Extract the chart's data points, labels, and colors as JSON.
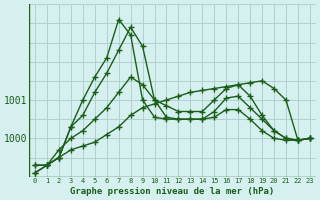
{
  "title": "Graphe pression niveau de la mer (hPa)",
  "background_color": "#d6f0f0",
  "grid_color": "#b0d0d0",
  "line_color": "#1a5e1a",
  "x_ticks": [
    0,
    1,
    2,
    3,
    4,
    5,
    6,
    7,
    8,
    9,
    10,
    11,
    12,
    13,
    14,
    15,
    16,
    17,
    18,
    19,
    20,
    21,
    22,
    23
  ],
  "ylim": [
    999.0,
    1003.5
  ],
  "yticks": [
    1000,
    1001
  ],
  "series": [
    [
      999.3,
      999.3,
      999.5,
      999.7,
      999.8,
      999.9,
      1000.1,
      1000.3,
      1000.6,
      1000.8,
      1000.9,
      1001.0,
      1001.1,
      1001.2,
      1001.25,
      1001.3,
      1001.35,
      1001.4,
      1001.45,
      1001.5,
      1001.3,
      1001.0,
      999.95,
      1000.0
    ],
    [
      999.3,
      999.3,
      999.7,
      1000.0,
      1000.2,
      1000.5,
      1000.8,
      1001.2,
      1001.6,
      1001.4,
      1001.0,
      1000.85,
      1000.7,
      1000.7,
      1000.7,
      1001.0,
      1001.3,
      1001.4,
      1001.1,
      1000.6,
      1000.2,
      1000.0,
      999.95,
      1000.0
    ],
    [
      999.1,
      999.3,
      999.5,
      1000.3,
      1000.6,
      1001.2,
      1001.7,
      1002.3,
      1002.9,
      1002.4,
      1001.0,
      1000.55,
      1000.5,
      1000.5,
      1000.5,
      1000.7,
      1001.05,
      1001.1,
      1000.8,
      1000.5,
      1000.2,
      1000.0,
      999.95,
      1000.0
    ],
    [
      999.1,
      999.3,
      999.5,
      1000.3,
      1001.0,
      1001.6,
      1002.1,
      1003.1,
      1002.7,
      1001.0,
      1000.55,
      1000.5,
      1000.5,
      1000.5,
      1000.5,
      1000.55,
      1000.75,
      1000.75,
      1000.5,
      1000.2,
      1000.0,
      999.95,
      999.95,
      1000.0
    ]
  ]
}
